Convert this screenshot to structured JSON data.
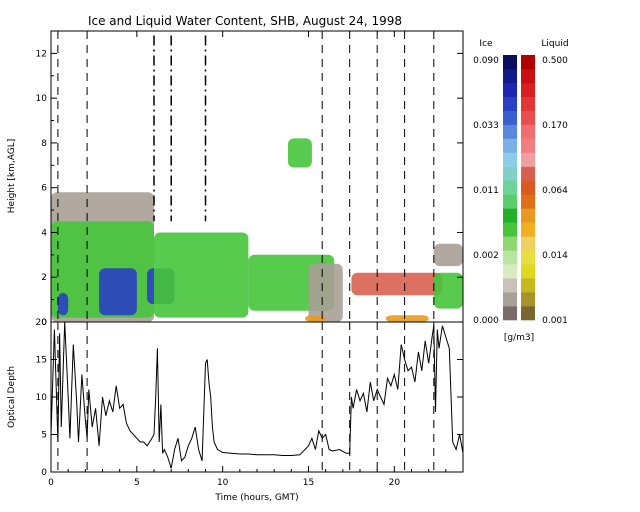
{
  "chart_data": [
    {
      "type": "heatmap",
      "title": "Ice and Liquid Water Content, SHB, August 24, 1998",
      "ylabel": "Height [km,AGL]",
      "xlim": [
        0,
        24
      ],
      "ylim": [
        0,
        13
      ],
      "yticks": [
        0,
        2,
        4,
        6,
        8,
        10,
        12
      ],
      "xticks": [
        0,
        5,
        10,
        15,
        20
      ],
      "grid": false,
      "dashed_markers_hours": [
        0.4,
        2.1,
        15.8,
        17.4,
        19.0,
        20.6,
        22.3
      ],
      "dashdot_markers_hours": [
        6.0,
        7.0,
        9.0
      ],
      "colorbar": {
        "ice_label": "Ice",
        "liquid_label": "Liquid",
        "units": "[g/m3]",
        "ice_ticks": [
          "0.000",
          "0.002",
          "0.011",
          "0.033",
          "0.090"
        ],
        "liquid_ticks": [
          "0.001",
          "0.014",
          "0.064",
          "0.170",
          "0.500"
        ],
        "ice_colors": [
          "#7a6a6a",
          "#a89f96",
          "#c8c2ba",
          "#d8ecc0",
          "#b8e6a0",
          "#8fd870",
          "#46c43a",
          "#22b026",
          "#5ccb6a",
          "#6ed39a",
          "#80cfc8",
          "#8ccde8",
          "#7ab0e8",
          "#5a88dc",
          "#3a5fd0",
          "#2a40c4",
          "#1c26b0",
          "#121a8c",
          "#0a0e5c"
        ],
        "liquid_colors": [
          "#7a6430",
          "#a8922a",
          "#c8b820",
          "#e0d820",
          "#e8e040",
          "#f0d060",
          "#f0b020",
          "#e89a20",
          "#e07018",
          "#d85a20",
          "#d86050",
          "#f0a0a0",
          "#f08080",
          "#f07070",
          "#e85050",
          "#e03838",
          "#d82020",
          "#c81010",
          "#b00000"
        ],
        "regions": [
          {
            "x0": 0.0,
            "x1": 6.0,
            "y0": 0.0,
            "y1": 5.8,
            "category": "ice-low"
          },
          {
            "x0": 0.0,
            "x1": 6.0,
            "y0": 0.2,
            "y1": 4.5,
            "category": "ice-mid"
          },
          {
            "x0": 2.8,
            "x1": 5.0,
            "y0": 0.3,
            "y1": 2.4,
            "category": "ice-high"
          },
          {
            "x0": 0.4,
            "x1": 1.0,
            "y0": 0.3,
            "y1": 1.3,
            "category": "ice-high"
          },
          {
            "x0": 5.6,
            "x1": 7.2,
            "y0": 0.8,
            "y1": 2.4,
            "category": "ice-high"
          },
          {
            "x0": 6.0,
            "x1": 11.5,
            "y0": 0.2,
            "y1": 4.0,
            "category": "ice-mid"
          },
          {
            "x0": 11.5,
            "x1": 16.5,
            "y0": 0.5,
            "y1": 3.0,
            "category": "ice-mid"
          },
          {
            "x0": 13.8,
            "x1": 15.2,
            "y0": 6.9,
            "y1": 8.2,
            "category": "ice-mid"
          },
          {
            "x0": 15.0,
            "x1": 17.0,
            "y0": 0.0,
            "y1": 2.6,
            "category": "ice-low"
          },
          {
            "x0": 17.5,
            "x1": 22.8,
            "y0": 1.2,
            "y1": 2.2,
            "category": "liquid-mid"
          },
          {
            "x0": 22.3,
            "x1": 24.0,
            "y0": 0.6,
            "y1": 2.2,
            "category": "ice-mid"
          },
          {
            "x0": 22.3,
            "x1": 24.0,
            "y0": 2.5,
            "y1": 3.5,
            "category": "ice-low"
          },
          {
            "x0": 14.8,
            "x1": 16.0,
            "y0": 0.0,
            "y1": 0.3,
            "category": "liquid-low"
          },
          {
            "x0": 19.5,
            "x1": 22.0,
            "y0": 0.0,
            "y1": 0.3,
            "category": "liquid-low"
          }
        ]
      }
    },
    {
      "type": "line",
      "xlabel": "Time (hours, GMT)",
      "ylabel": "Optical Depth",
      "xlim": [
        0,
        24
      ],
      "ylim": [
        0,
        20
      ],
      "yticks": [
        0,
        5,
        10,
        15,
        20
      ],
      "xticks": [
        0,
        5,
        10,
        15,
        20
      ],
      "grid": false,
      "series": [
        {
          "x": [
            0.0,
            0.2,
            0.4,
            0.5,
            0.6,
            0.8,
            1.0,
            1.1,
            1.3,
            1.5,
            1.6,
            1.8,
            2.0,
            2.1,
            2.2,
            2.4,
            2.6,
            2.8,
            3.0,
            3.2,
            3.4,
            3.6,
            3.8,
            4.0,
            4.2,
            4.4,
            4.6,
            4.8,
            5.0,
            5.2,
            5.4,
            5.6,
            5.8,
            6.0,
            6.1,
            6.2,
            6.3,
            6.4,
            6.5,
            6.6,
            6.8,
            7.0,
            7.2,
            7.4,
            7.6,
            7.8,
            8.0,
            8.2,
            8.4,
            8.6,
            8.8,
            9.0,
            9.1,
            9.2,
            9.3,
            9.4,
            9.5,
            9.7,
            10.0,
            10.5,
            11.0,
            11.5,
            12.0,
            12.5,
            13.0,
            13.5,
            14.0,
            14.5,
            15.0,
            15.2,
            15.4,
            15.6,
            15.8,
            16.0,
            16.2,
            16.4,
            16.8,
            17.2,
            17.4,
            17.5,
            17.6,
            17.8,
            18.0,
            18.2,
            18.4,
            18.6,
            18.8,
            19.0,
            19.2,
            19.4,
            19.6,
            19.8,
            20.0,
            20.2,
            20.4,
            20.6,
            20.8,
            21.0,
            21.2,
            21.4,
            21.6,
            21.8,
            22.0,
            22.2,
            22.3,
            22.4,
            22.5,
            22.6,
            22.8,
            23.0,
            23.2,
            23.4,
            23.6,
            23.8,
            24.0
          ],
          "y": [
            5.0,
            19.0,
            4.0,
            18.5,
            6.0,
            20.0,
            10.0,
            4.5,
            17.0,
            9.0,
            4.0,
            13.0,
            7.0,
            4.5,
            11.0,
            6.0,
            8.5,
            3.5,
            10.0,
            7.5,
            9.5,
            8.0,
            11.5,
            8.5,
            9.0,
            6.5,
            5.5,
            5.0,
            4.5,
            4.0,
            4.0,
            3.5,
            4.2,
            5.0,
            10.0,
            16.5,
            4.0,
            9.0,
            2.5,
            3.0,
            2.0,
            0.5,
            3.0,
            4.5,
            1.5,
            2.0,
            3.5,
            4.5,
            6.0,
            3.0,
            1.5,
            14.5,
            15.0,
            12.0,
            10.0,
            6.0,
            4.0,
            3.0,
            2.6,
            2.5,
            2.4,
            2.4,
            2.3,
            2.3,
            2.3,
            2.2,
            2.2,
            2.3,
            3.5,
            4.5,
            3.0,
            5.5,
            4.5,
            5.0,
            3.0,
            2.8,
            3.0,
            2.5,
            2.5,
            10.0,
            8.5,
            11.0,
            9.5,
            10.5,
            8.0,
            12.0,
            9.5,
            11.0,
            10.0,
            9.0,
            12.5,
            11.5,
            13.0,
            11.0,
            17.0,
            15.0,
            13.5,
            14.0,
            12.0,
            16.0,
            13.5,
            17.5,
            14.5,
            18.0,
            19.5,
            8.0,
            19.0,
            16.5,
            19.5,
            18.0,
            16.5,
            4.0,
            3.0,
            5.0,
            2.5
          ]
        }
      ],
      "dashed_markers_hours": [
        0.4,
        2.1,
        15.8,
        17.4,
        19.0,
        20.6,
        22.3
      ]
    }
  ]
}
